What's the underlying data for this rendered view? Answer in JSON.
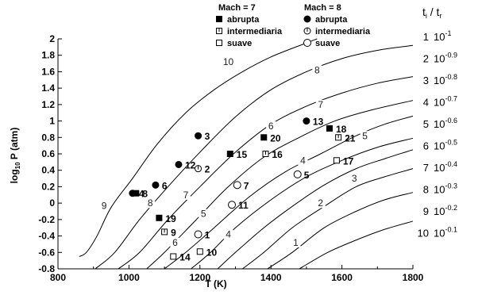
{
  "chart_data": {
    "type": "scatter",
    "xlabel": "T (K)",
    "ylabel_prefix": "log",
    "ylabel_sub": "10",
    "ylabel_suffix": " P (atm)",
    "xlim": [
      800,
      1800
    ],
    "ylim": [
      -0.8,
      2
    ],
    "x_ticks": [
      800,
      1000,
      1200,
      1400,
      1600,
      1800
    ],
    "y_ticks": [
      "-0.8",
      "-0.6",
      "-0.4",
      "-0.2",
      "0",
      "0.2",
      "0.4",
      "0.6",
      "0.8",
      "1",
      "1.2",
      "1.4",
      "1.6",
      "1.8",
      "2"
    ],
    "legend": {
      "mach7_title": "Mach = 7",
      "mach8_title": "Mach = 8",
      "entries": [
        {
          "mach": "7",
          "marker": "filled-square",
          "label": "abrupta"
        },
        {
          "mach": "7",
          "marker": "half-square",
          "label": "intermediaria"
        },
        {
          "mach": "7",
          "marker": "open-square",
          "label": "suave"
        },
        {
          "mach": "8",
          "marker": "filled-circle",
          "label": "abrupta"
        },
        {
          "mach": "8",
          "marker": "half-circle",
          "label": "intermediaria"
        },
        {
          "mach": "8",
          "marker": "open-circle",
          "label": "suave"
        }
      ]
    },
    "ratio_table": {
      "title_t": "t",
      "title_i": "i",
      "title_mid": " / t",
      "title_r": "r",
      "base": "10",
      "rows": [
        {
          "n": "1",
          "exp": "-1"
        },
        {
          "n": "2",
          "exp": "-0.9"
        },
        {
          "n": "3",
          "exp": "-0.8"
        },
        {
          "n": "4",
          "exp": "-0.7"
        },
        {
          "n": "5",
          "exp": "-0.6"
        },
        {
          "n": "6",
          "exp": "-0.5"
        },
        {
          "n": "7",
          "exp": "-0.4"
        },
        {
          "n": "8",
          "exp": "-0.3"
        },
        {
          "n": "9",
          "exp": "-0.2"
        },
        {
          "n": "10",
          "exp": "-0.1"
        }
      ]
    },
    "contours": [
      {
        "label": "1",
        "points": [
          [
            1480,
            -0.8
          ],
          [
            1560,
            -0.6
          ],
          [
            1640,
            -0.45
          ],
          [
            1720,
            -0.32
          ],
          [
            1800,
            -0.22
          ]
        ]
      },
      {
        "label": "2",
        "points": [
          [
            1390,
            -0.8
          ],
          [
            1460,
            -0.6
          ],
          [
            1550,
            -0.3
          ],
          [
            1640,
            -0.1
          ],
          [
            1720,
            0.04
          ],
          [
            1800,
            0.13
          ]
        ]
      },
      {
        "label": "3",
        "points": [
          [
            1320,
            -0.8
          ],
          [
            1380,
            -0.6
          ],
          [
            1460,
            -0.3
          ],
          [
            1550,
            -0.04
          ],
          [
            1640,
            0.2
          ],
          [
            1720,
            0.32
          ],
          [
            1800,
            0.42
          ]
        ]
      },
      {
        "label": "4",
        "points": [
          [
            1250,
            -0.8
          ],
          [
            1300,
            -0.6
          ],
          [
            1380,
            -0.3
          ],
          [
            1460,
            -0.04
          ],
          [
            1550,
            0.22
          ],
          [
            1640,
            0.42
          ],
          [
            1720,
            0.54
          ],
          [
            1800,
            0.65
          ]
        ]
      },
      {
        "label": "5",
        "points": [
          [
            1175,
            -0.8
          ],
          [
            1230,
            -0.6
          ],
          [
            1300,
            -0.3
          ],
          [
            1400,
            0.04
          ],
          [
            1500,
            0.32
          ],
          [
            1600,
            0.52
          ],
          [
            1700,
            0.68
          ],
          [
            1800,
            0.79
          ]
        ]
      },
      {
        "label": "6",
        "points": [
          [
            1100,
            -0.8
          ],
          [
            1160,
            -0.6
          ],
          [
            1240,
            -0.3
          ],
          [
            1340,
            0.08
          ],
          [
            1440,
            0.38
          ],
          [
            1540,
            0.6
          ],
          [
            1640,
            0.82
          ],
          [
            1720,
            0.96
          ],
          [
            1800,
            1.06
          ]
        ]
      },
      {
        "label": "7",
        "points": [
          [
            1050,
            -0.8
          ],
          [
            1100,
            -0.6
          ],
          [
            1190,
            -0.2
          ],
          [
            1280,
            0.2
          ],
          [
            1380,
            0.56
          ],
          [
            1480,
            0.8
          ],
          [
            1580,
            1.0
          ],
          [
            1680,
            1.13
          ],
          [
            1800,
            1.25
          ]
        ]
      },
      {
        "label": "8",
        "points": [
          [
            970,
            -0.8
          ],
          [
            1030,
            -0.6
          ],
          [
            1110,
            -0.2
          ],
          [
            1200,
            0.2
          ],
          [
            1300,
            0.62
          ],
          [
            1400,
            0.96
          ],
          [
            1500,
            1.18
          ],
          [
            1600,
            1.34
          ],
          [
            1700,
            1.46
          ],
          [
            1800,
            1.54
          ]
        ]
      },
      {
        "label": "9",
        "points": [
          [
            905,
            -0.8
          ],
          [
            960,
            -0.6
          ],
          [
            1030,
            -0.2
          ],
          [
            1110,
            0.2
          ],
          [
            1200,
            0.62
          ],
          [
            1300,
            1.05
          ],
          [
            1400,
            1.38
          ],
          [
            1500,
            1.6
          ],
          [
            1600,
            1.76
          ],
          [
            1700,
            1.86
          ],
          [
            1800,
            1.92
          ]
        ]
      },
      {
        "label": "10",
        "points": [
          [
            860,
            -0.65
          ],
          [
            880,
            -0.6
          ],
          [
            910,
            -0.4
          ],
          [
            950,
            -0.05
          ],
          [
            1010,
            0.3
          ],
          [
            1080,
            0.72
          ],
          [
            1160,
            1.1
          ],
          [
            1240,
            1.38
          ],
          [
            1320,
            1.6
          ],
          [
            1400,
            1.78
          ],
          [
            1500,
            1.95
          ],
          [
            1530,
            2.0
          ]
        ]
      }
    ],
    "curve_labels": [
      {
        "text": "10",
        "x": 1280,
        "y": 1.7
      },
      {
        "text": "8",
        "x": 1530,
        "y": 1.6
      },
      {
        "text": "7",
        "x": 1540,
        "y": 1.18
      },
      {
        "text": "6",
        "x": 1400,
        "y": 0.92
      },
      {
        "text": "5",
        "x": 1665,
        "y": 0.8
      },
      {
        "text": "4",
        "x": 1490,
        "y": 0.5
      },
      {
        "text": "3",
        "x": 1635,
        "y": 0.28
      },
      {
        "text": "2",
        "x": 1540,
        "y": -0.02
      },
      {
        "text": "1",
        "x": 1470,
        "y": -0.5
      },
      {
        "text": "9",
        "x": 930,
        "y": -0.05
      },
      {
        "text": "8",
        "x": 1060,
        "y": -0.02
      },
      {
        "text": "7",
        "x": 1160,
        "y": 0.08
      },
      {
        "text": "6",
        "x": 1130,
        "y": -0.5
      },
      {
        "text": "5",
        "x": 1210,
        "y": -0.15
      },
      {
        "text": "4",
        "x": 1280,
        "y": -0.4
      }
    ],
    "points": [
      {
        "id": "1",
        "marker": "open-circle",
        "x": 1195,
        "y": -0.38
      },
      {
        "id": "2",
        "marker": "half-circle",
        "x": 1195,
        "y": 0.42
      },
      {
        "id": "3",
        "marker": "filled-circle",
        "x": 1195,
        "y": 0.82
      },
      {
        "id": "4",
        "marker": "filled-circle",
        "x": 1010,
        "y": 0.12
      },
      {
        "id": "5",
        "marker": "open-circle",
        "x": 1475,
        "y": 0.35
      },
      {
        "id": "6",
        "marker": "filled-circle",
        "x": 1075,
        "y": 0.22
      },
      {
        "id": "7",
        "marker": "open-circle",
        "x": 1305,
        "y": 0.22
      },
      {
        "id": "8",
        "marker": "filled-square",
        "x": 1020,
        "y": 0.12
      },
      {
        "id": "9",
        "marker": "half-square",
        "x": 1100,
        "y": -0.35
      },
      {
        "id": "10",
        "marker": "open-square",
        "x": 1200,
        "y": -0.59
      },
      {
        "id": "11",
        "marker": "open-circle",
        "x": 1290,
        "y": -0.02
      },
      {
        "id": "12",
        "marker": "filled-circle",
        "x": 1140,
        "y": 0.47
      },
      {
        "id": "13",
        "marker": "filled-circle",
        "x": 1500,
        "y": 1.0
      },
      {
        "id": "14",
        "marker": "open-square",
        "x": 1125,
        "y": -0.65
      },
      {
        "id": "15",
        "marker": "filled-square",
        "x": 1285,
        "y": 0.6
      },
      {
        "id": "16",
        "marker": "half-square",
        "x": 1385,
        "y": 0.6
      },
      {
        "id": "17",
        "marker": "open-square",
        "x": 1585,
        "y": 0.52
      },
      {
        "id": "18",
        "marker": "filled-square",
        "x": 1565,
        "y": 0.91
      },
      {
        "id": "19",
        "marker": "filled-square",
        "x": 1085,
        "y": -0.18
      },
      {
        "id": "20",
        "marker": "filled-square",
        "x": 1380,
        "y": 0.8
      },
      {
        "id": "21",
        "marker": "half-square",
        "x": 1590,
        "y": 0.8
      }
    ]
  }
}
